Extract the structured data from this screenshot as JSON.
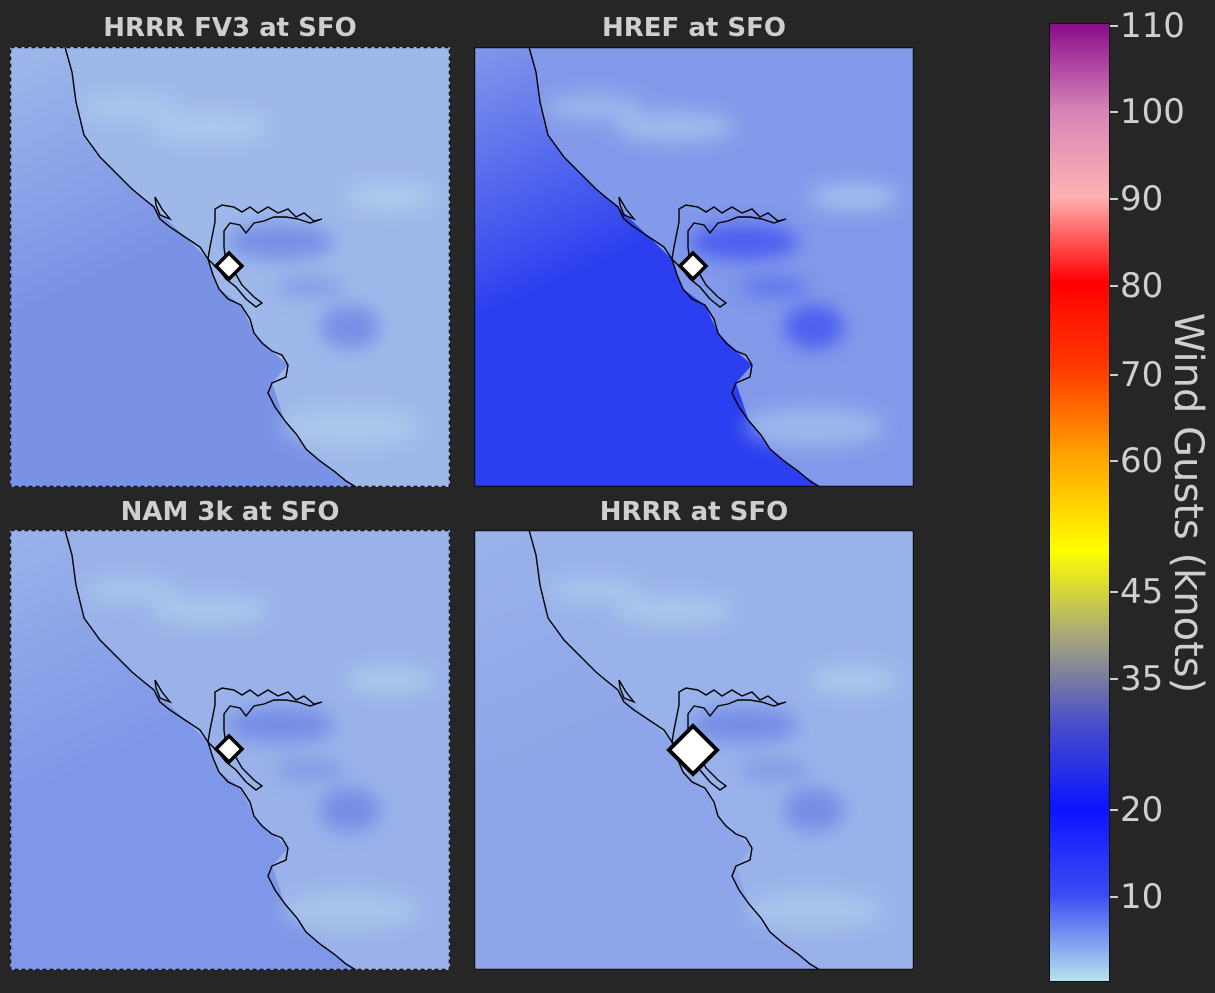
{
  "panels": [
    {
      "title": "HRRR FV3 at SFO",
      "base": "#9fb8ea",
      "ocean": "#7a92e6",
      "marker": "small"
    },
    {
      "title": "HREF at SFO",
      "base": "#8399ea",
      "ocean": "#2c3ff0",
      "marker": "small"
    },
    {
      "title": "NAM 3k at SFO",
      "base": "#9ab2e9",
      "ocean": "#7f97e8",
      "marker": "small"
    },
    {
      "title": "HRRR at SFO",
      "base": "#9ab2ea",
      "ocean": "#8ea5e9",
      "marker": "large"
    }
  ],
  "colorbar": {
    "label": "Wind Gusts (knots)",
    "ticks": [
      "110",
      "100",
      "90",
      "80",
      "70",
      "60",
      "45",
      "35",
      "20",
      "10"
    ],
    "colors": [
      "#b6e3ef",
      "#3c4cf2",
      "#0b14ff",
      "#4a4fc8",
      "#a6a77a",
      "#ffff00",
      "#ffa200",
      "#ff3a00",
      "#ff0000",
      "#ffb2b2",
      "#d683b7",
      "#8a0c8a"
    ]
  },
  "station": "SFO"
}
